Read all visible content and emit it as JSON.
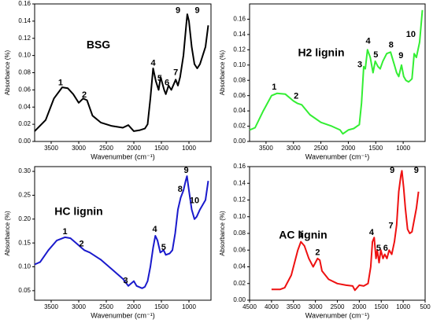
{
  "chart_data": [
    {
      "type": "line",
      "title": "BSG",
      "xlabel": "Wavenumber (cm⁻¹)",
      "ylabel": "Absorbance (%)",
      "color": "#000000",
      "xlim": [
        3800,
        600
      ],
      "xticks": [
        3500,
        3000,
        2500,
        2000,
        1500,
        1000
      ],
      "ylim": [
        0,
        0.16
      ],
      "yticks": [
        {
          "value": 0,
          "label": "0.00"
        },
        0.02,
        0.04,
        0.06,
        0.08,
        {
          "value": 0.1,
          "label": "0.10"
        },
        0.12,
        0.14,
        0.16
      ],
      "x": [
        3800,
        3600,
        3450,
        3300,
        3200,
        3100,
        3000,
        2920,
        2850,
        2750,
        2600,
        2400,
        2200,
        2100,
        2000,
        1900,
        1800,
        1750,
        1700,
        1650,
        1600,
        1550,
        1515,
        1450,
        1420,
        1370,
        1320,
        1240,
        1200,
        1160,
        1100,
        1050,
        1030,
        1000,
        950,
        900,
        850,
        800,
        700,
        650
      ],
      "values": [
        0.012,
        0.025,
        0.05,
        0.063,
        0.062,
        0.055,
        0.045,
        0.05,
        0.048,
        0.03,
        0.022,
        0.018,
        0.016,
        0.019,
        0.012,
        0.013,
        0.015,
        0.02,
        0.05,
        0.085,
        0.07,
        0.06,
        0.075,
        0.06,
        0.055,
        0.065,
        0.06,
        0.072,
        0.065,
        0.075,
        0.1,
        0.135,
        0.148,
        0.14,
        0.11,
        0.09,
        0.085,
        0.09,
        0.11,
        0.135
      ],
      "annotations": [
        {
          "text": "1",
          "x": 3330,
          "y": 0.068
        },
        {
          "text": "2",
          "x": 2900,
          "y": 0.054
        },
        {
          "text": "4",
          "x": 1650,
          "y": 0.091
        },
        {
          "text": "5",
          "x": 1530,
          "y": 0.073
        },
        {
          "text": "6",
          "x": 1400,
          "y": 0.068
        },
        {
          "text": "7",
          "x": 1240,
          "y": 0.08
        },
        {
          "text": "9",
          "x": 1200,
          "y": 0.152
        },
        {
          "text": "9",
          "x": 850,
          "y": 0.152
        }
      ]
    },
    {
      "type": "line",
      "title": "H2 lignin",
      "xlabel": "Wavenumber (cm⁻¹)",
      "ylabel": "Absorbance (%)",
      "color": "#33ee33",
      "xlim": [
        3800,
        600
      ],
      "xticks": [
        3500,
        3000,
        2500,
        2000,
        1500,
        1000
      ],
      "ylim": [
        0,
        0.18
      ],
      "yticks": [
        {
          "value": 0,
          "label": "0.00"
        },
        0.02,
        0.04,
        0.06,
        0.08,
        {
          "value": 0.1,
          "label": "0.10"
        },
        0.12,
        0.14,
        0.16
      ],
      "x": [
        3800,
        3700,
        3550,
        3400,
        3300,
        3150,
        3000,
        2930,
        2850,
        2700,
        2500,
        2300,
        2150,
        2100,
        2000,
        1900,
        1800,
        1760,
        1720,
        1690,
        1650,
        1600,
        1550,
        1510,
        1460,
        1420,
        1370,
        1300,
        1230,
        1160,
        1120,
        1080,
        1030,
        990,
        950,
        900,
        840,
        800,
        760,
        700,
        650
      ],
      "values": [
        0.015,
        0.018,
        0.04,
        0.06,
        0.063,
        0.062,
        0.053,
        0.05,
        0.048,
        0.035,
        0.025,
        0.02,
        0.015,
        0.01,
        0.015,
        0.017,
        0.022,
        0.05,
        0.098,
        0.095,
        0.12,
        0.11,
        0.09,
        0.105,
        0.098,
        0.095,
        0.105,
        0.115,
        0.117,
        0.1,
        0.09,
        0.085,
        0.1,
        0.085,
        0.08,
        0.078,
        0.082,
        0.115,
        0.11,
        0.13,
        0.172
      ],
      "annotations": [
        {
          "text": "1",
          "x": 3350,
          "y": 0.071
        },
        {
          "text": "2",
          "x": 2950,
          "y": 0.059
        },
        {
          "text": "3",
          "x": 1790,
          "y": 0.1
        },
        {
          "text": "4",
          "x": 1640,
          "y": 0.131
        },
        {
          "text": "5",
          "x": 1500,
          "y": 0.113
        },
        {
          "text": "8",
          "x": 1220,
          "y": 0.126
        },
        {
          "text": "9",
          "x": 1040,
          "y": 0.112
        },
        {
          "text": "10",
          "x": 860,
          "y": 0.14
        }
      ]
    },
    {
      "type": "line",
      "title": "HC lignin",
      "xlabel": "Wavenumber (cm⁻¹)",
      "ylabel": "Absorbance (%)",
      "color": "#1a1acc",
      "xlim": [
        3800,
        600
      ],
      "xticks": [
        3500,
        3000,
        2500,
        2000,
        1500,
        1000
      ],
      "ylim": [
        0.03,
        0.31
      ],
      "yticks": [
        0.05,
        {
          "value": 0.1,
          "label": "0.10"
        },
        0.15,
        {
          "value": 0.2,
          "label": "0.20"
        },
        0.25,
        {
          "value": 0.3,
          "label": "0.30"
        }
      ],
      "x": [
        3800,
        3700,
        3550,
        3400,
        3250,
        3150,
        3050,
        2950,
        2900,
        2800,
        2600,
        2400,
        2200,
        2100,
        2000,
        1950,
        1850,
        1800,
        1750,
        1700,
        1650,
        1610,
        1570,
        1520,
        1460,
        1420,
        1350,
        1300,
        1250,
        1200,
        1150,
        1100,
        1060,
        1035,
        1000,
        950,
        900,
        860,
        800,
        700,
        650
      ],
      "values": [
        0.105,
        0.11,
        0.135,
        0.155,
        0.162,
        0.16,
        0.15,
        0.14,
        0.135,
        0.13,
        0.115,
        0.095,
        0.075,
        0.06,
        0.07,
        0.06,
        0.055,
        0.058,
        0.07,
        0.1,
        0.14,
        0.165,
        0.155,
        0.13,
        0.135,
        0.125,
        0.128,
        0.135,
        0.17,
        0.22,
        0.245,
        0.26,
        0.28,
        0.29,
        0.26,
        0.22,
        0.2,
        0.205,
        0.22,
        0.24,
        0.28
      ],
      "annotations": [
        {
          "text": "1",
          "x": 3250,
          "y": 0.173
        },
        {
          "text": "2",
          "x": 2950,
          "y": 0.148
        },
        {
          "text": "3",
          "x": 2150,
          "y": 0.07
        },
        {
          "text": "4",
          "x": 1620,
          "y": 0.178
        },
        {
          "text": "5",
          "x": 1460,
          "y": 0.14
        },
        {
          "text": "8",
          "x": 1160,
          "y": 0.262
        },
        {
          "text": "9",
          "x": 1050,
          "y": 0.302
        },
        {
          "text": "10",
          "x": 900,
          "y": 0.238
        }
      ]
    },
    {
      "type": "line",
      "title": "AC lignin",
      "xlabel": "Wavenumber (cm⁻¹)",
      "ylabel": "Absorbance (%)",
      "color": "#ee1111",
      "xlim": [
        4500,
        500
      ],
      "xticks": [
        4500,
        4000,
        3500,
        3000,
        2500,
        2000,
        1500,
        1000,
        500
      ],
      "ylim": [
        0,
        0.16
      ],
      "yticks": [
        {
          "value": 0,
          "label": "0.00"
        },
        0.02,
        0.04,
        0.06,
        0.08,
        {
          "value": 0.1,
          "label": "0.10"
        },
        0.12,
        0.14,
        0.16
      ],
      "x": [
        4000,
        3800,
        3700,
        3550,
        3400,
        3330,
        3250,
        3150,
        3050,
        2950,
        2900,
        2850,
        2700,
        2500,
        2300,
        2150,
        2100,
        2000,
        1900,
        1800,
        1740,
        1700,
        1660,
        1620,
        1590,
        1550,
        1510,
        1460,
        1420,
        1370,
        1320,
        1260,
        1200,
        1150,
        1100,
        1050,
        1030,
        990,
        950,
        900,
        850,
        800,
        700,
        650
      ],
      "values": [
        0.013,
        0.013,
        0.015,
        0.03,
        0.06,
        0.07,
        0.065,
        0.05,
        0.04,
        0.05,
        0.048,
        0.035,
        0.025,
        0.02,
        0.018,
        0.017,
        0.012,
        0.018,
        0.017,
        0.02,
        0.04,
        0.07,
        0.075,
        0.05,
        0.06,
        0.045,
        0.06,
        0.05,
        0.055,
        0.05,
        0.06,
        0.055,
        0.07,
        0.09,
        0.13,
        0.15,
        0.155,
        0.135,
        0.11,
        0.085,
        0.08,
        0.082,
        0.11,
        0.13
      ],
      "annotations": [
        {
          "text": "1",
          "x": 3330,
          "y": 0.078
        },
        {
          "text": "2",
          "x": 2950,
          "y": 0.057
        },
        {
          "text": "4",
          "x": 1720,
          "y": 0.081
        },
        {
          "text": "5",
          "x": 1560,
          "y": 0.062
        },
        {
          "text": "6",
          "x": 1400,
          "y": 0.062
        },
        {
          "text": "7",
          "x": 1280,
          "y": 0.089
        },
        {
          "text": "9",
          "x": 1250,
          "y": 0.155
        },
        {
          "text": "9",
          "x": 700,
          "y": 0.155
        }
      ]
    }
  ]
}
